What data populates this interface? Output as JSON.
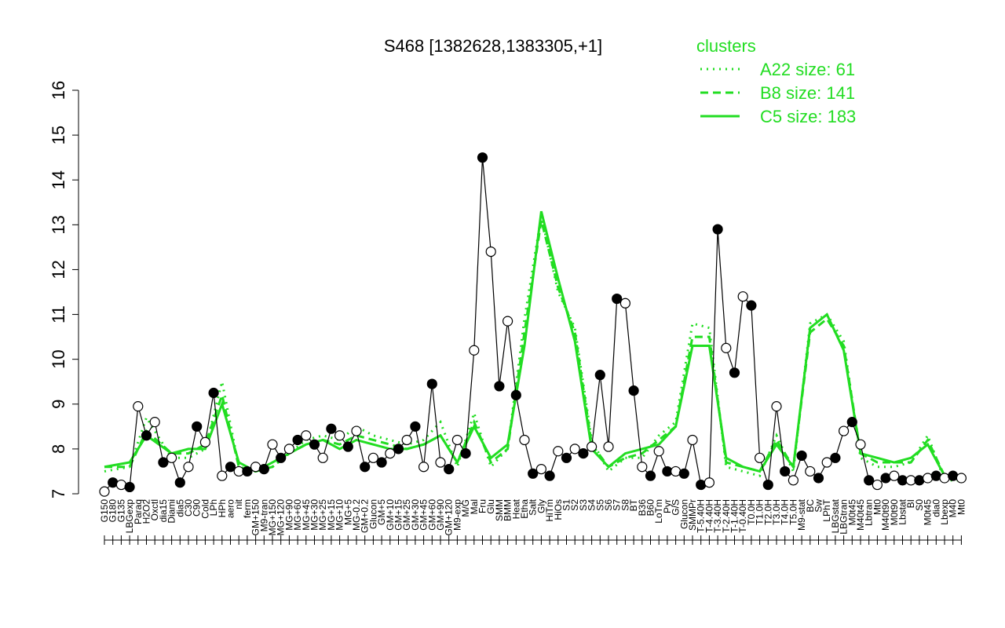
{
  "chart_data": {
    "type": "line",
    "title": "S468 [1382628,1383305,+1]",
    "xlabel": "",
    "ylabel": "",
    "ylim": [
      7,
      16
    ],
    "yticks": [
      7,
      8,
      9,
      10,
      11,
      12,
      13,
      14,
      15,
      16
    ],
    "grid": false,
    "legend": {
      "title": "clusters",
      "position": "top-right",
      "color": "#22dd22",
      "entries": [
        {
          "label": "A22 size: 61",
          "style": "dotted"
        },
        {
          "label": "B8 size: 141",
          "style": "dashed"
        },
        {
          "label": "C5 size: 183",
          "style": "solid"
        }
      ]
    },
    "x_tick_labels": [
      "G150",
      "G180",
      "G135",
      "LBGexp",
      "Paraq",
      "H2O2",
      "Oxctl",
      "dia15",
      "Diami",
      "dia5",
      "C30",
      "C90",
      "Cold",
      "LPh",
      "HPh",
      "aero",
      "nit",
      "ferm",
      "GM+150",
      "M9-tran",
      "MG+150",
      "MG+120",
      "MG+90",
      "MG+60",
      "MG+45",
      "MG+30",
      "MG+25",
      "MG+15",
      "MG+10",
      "MG+5",
      "MG-0.2",
      "GM+0.2",
      "Glucon",
      "GM+5",
      "GM+10",
      "GM+15",
      "GM+25",
      "GM+30",
      "GM+45",
      "GM+60",
      "GM+90",
      "GM+120",
      "M9-exp",
      "M/G",
      "Mal",
      "Fru",
      "Glu",
      "SMM",
      "BMM",
      "Heat",
      "Etha",
      "Salt",
      "Gly",
      "HiTm",
      "HiOs",
      "S1",
      "S2",
      "S3",
      "S4",
      "S5",
      "S6",
      "S7",
      "S8",
      "BT",
      "B36",
      "B60",
      "LoTm",
      "Pyr",
      "G/S",
      "Glucon",
      "SMMPr",
      "T-5.40H",
      "T-4.40H",
      "T-3.40H",
      "T-2.40H",
      "T-1.40H",
      "T-0.40H",
      "T0.0H",
      "T1.0H",
      "T2.0H",
      "T3.0H",
      "T4.0H",
      "T5.0H",
      "M9-stat",
      "BC",
      "Sw",
      "LPhT",
      "LBGstat",
      "LBGtran",
      "M0t45",
      "M40t45",
      "Lbtran",
      "Mt0",
      "M40t90",
      "M0t90",
      "Lbstat",
      "BI",
      "S0",
      "M0t45",
      "dia0",
      "Lbexp",
      "M40",
      "Mt0"
    ],
    "series": [
      {
        "name": "A22",
        "color": "#22dd22",
        "style": "dotted",
        "x": [
          0,
          3,
          5,
          8,
          10,
          12,
          14,
          16,
          18,
          20,
          22,
          24,
          26,
          28,
          30,
          32,
          34,
          36,
          38,
          40,
          42,
          44,
          46,
          48,
          50,
          52,
          54,
          56,
          58,
          60,
          62,
          64,
          66,
          68,
          70,
          72,
          74,
          76,
          78,
          80,
          82,
          84,
          86,
          88,
          90,
          92,
          94,
          96,
          98,
          100,
          102
        ],
        "y": [
          7.5,
          7.6,
          8.7,
          7.8,
          7.8,
          8.0,
          9.5,
          7.6,
          7.5,
          7.6,
          7.9,
          8.2,
          8.3,
          8.2,
          8.5,
          8.3,
          8.2,
          8.1,
          8.2,
          8.6,
          7.6,
          8.8,
          7.6,
          8.0,
          10.9,
          13.2,
          11.5,
          10.7,
          8.2,
          7.5,
          7.8,
          7.8,
          8.3,
          8.6,
          10.8,
          10.7,
          7.6,
          7.5,
          7.4,
          8.3,
          7.5,
          10.8,
          11.0,
          10.4,
          7.8,
          7.6,
          7.6,
          7.7,
          8.3,
          7.3,
          7.3
        ]
      },
      {
        "name": "B8",
        "color": "#22dd22",
        "style": "dashed",
        "x": [
          0,
          3,
          5,
          8,
          10,
          12,
          14,
          16,
          18,
          20,
          22,
          24,
          26,
          28,
          30,
          32,
          34,
          36,
          38,
          40,
          42,
          44,
          46,
          48,
          50,
          52,
          54,
          56,
          58,
          60,
          62,
          64,
          66,
          68,
          70,
          72,
          74,
          76,
          78,
          80,
          82,
          84,
          86,
          88,
          90,
          92,
          94,
          96,
          98,
          100,
          102
        ],
        "y": [
          7.6,
          7.6,
          8.4,
          7.9,
          7.9,
          8.1,
          9.2,
          7.6,
          7.5,
          7.6,
          7.9,
          8.1,
          8.2,
          8.1,
          8.3,
          8.2,
          8.1,
          8.0,
          8.1,
          8.3,
          7.7,
          8.6,
          7.7,
          8.0,
          10.6,
          13.1,
          11.6,
          10.6,
          8.1,
          7.6,
          7.8,
          7.9,
          8.2,
          8.5,
          10.5,
          10.5,
          7.7,
          7.6,
          7.5,
          8.2,
          7.6,
          10.6,
          10.9,
          10.3,
          7.9,
          7.7,
          7.7,
          7.7,
          8.2,
          7.4,
          7.4
        ]
      },
      {
        "name": "C5",
        "color": "#22dd22",
        "style": "solid",
        "x": [
          0,
          3,
          5,
          8,
          10,
          12,
          14,
          16,
          18,
          20,
          22,
          24,
          26,
          28,
          30,
          32,
          34,
          36,
          38,
          40,
          42,
          44,
          46,
          48,
          50,
          52,
          54,
          56,
          58,
          60,
          62,
          64,
          66,
          68,
          70,
          72,
          74,
          76,
          78,
          80,
          82,
          84,
          86,
          88,
          90,
          92,
          94,
          96,
          98,
          100,
          102
        ],
        "y": [
          7.6,
          7.7,
          8.3,
          7.9,
          8.0,
          8.0,
          9.0,
          7.7,
          7.5,
          7.7,
          7.9,
          8.1,
          8.2,
          8.0,
          8.2,
          8.1,
          8.0,
          8.0,
          8.1,
          8.3,
          7.7,
          8.5,
          7.8,
          8.1,
          10.3,
          13.3,
          11.8,
          10.4,
          8.0,
          7.6,
          7.9,
          8.0,
          8.1,
          8.5,
          10.3,
          10.3,
          7.8,
          7.6,
          7.5,
          8.1,
          7.6,
          10.7,
          11.0,
          10.2,
          7.9,
          7.8,
          7.7,
          7.8,
          8.1,
          7.4,
          7.4
        ]
      },
      {
        "name": "",
        "color": "#000000",
        "style": "solid",
        "marker": "circle",
        "x": [
          0,
          1,
          2,
          3,
          4,
          5,
          6,
          7,
          8,
          9,
          10,
          11,
          12,
          13,
          14,
          15,
          16,
          17,
          18,
          19,
          20,
          21,
          22,
          23,
          24,
          25,
          26,
          27,
          28,
          29,
          30,
          31,
          32,
          33,
          34,
          35,
          36,
          37,
          38,
          39,
          40,
          41,
          42,
          43,
          44,
          45,
          46,
          47,
          48,
          49,
          50,
          51,
          52,
          53,
          54,
          55,
          56,
          57,
          58,
          59,
          60,
          61,
          62,
          63,
          64,
          65,
          66,
          67,
          68,
          69,
          70,
          71,
          72,
          73,
          74,
          75,
          76,
          77,
          78,
          79,
          80,
          81,
          82,
          83,
          84,
          85,
          86,
          87,
          88,
          89,
          90,
          91,
          92,
          93,
          94,
          95,
          96,
          97,
          98,
          99,
          100,
          101,
          102
        ],
        "y": [
          7.05,
          7.25,
          7.2,
          7.15,
          8.95,
          8.3,
          8.6,
          7.7,
          7.8,
          7.25,
          7.6,
          8.5,
          8.15,
          9.25,
          7.4,
          7.6,
          7.5,
          7.5,
          7.6,
          7.55,
          8.1,
          7.8,
          8.0,
          8.2,
          8.3,
          8.1,
          7.8,
          8.45,
          8.3,
          8.05,
          8.4,
          7.6,
          7.8,
          7.7,
          7.9,
          8.0,
          8.2,
          8.5,
          7.6,
          9.45,
          7.7,
          7.55,
          8.2,
          7.9,
          10.2,
          14.5,
          12.4,
          9.4,
          10.85,
          9.2,
          8.2,
          7.45,
          7.55,
          7.4,
          7.95,
          7.8,
          8.0,
          7.9,
          8.05,
          9.65,
          8.05,
          11.35,
          11.25,
          9.3,
          7.6,
          7.4,
          7.95,
          7.5,
          7.5,
          7.45,
          8.2,
          7.2,
          7.25,
          12.9,
          10.25,
          9.7,
          11.4,
          11.2,
          7.8,
          7.2,
          8.95,
          7.5,
          7.3,
          7.85,
          7.5,
          7.35,
          7.7,
          7.8,
          8.4,
          8.6,
          8.1,
          7.3,
          7.2,
          7.35,
          7.4,
          7.3,
          7.3,
          7.3,
          7.35,
          7.4,
          7.35,
          7.4,
          7.35
        ]
      }
    ]
  }
}
